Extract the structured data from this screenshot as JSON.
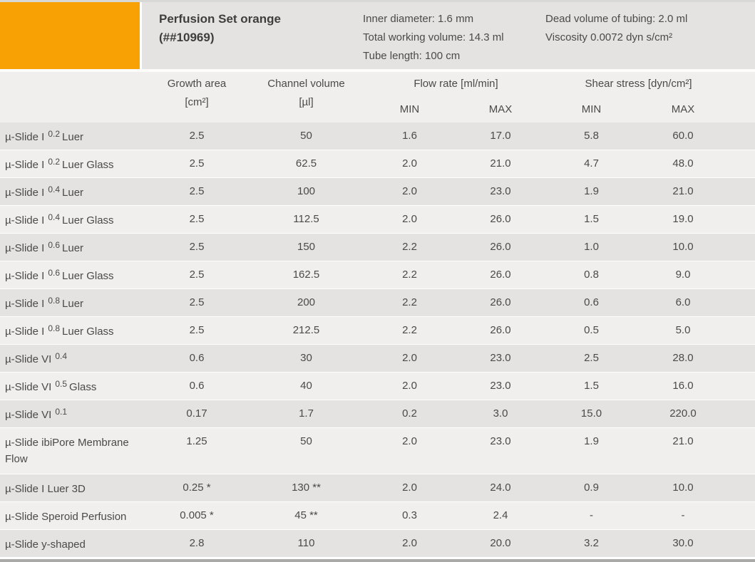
{
  "header": {
    "title_line1": "Perfusion Set orange",
    "title_line2": "(##10969)",
    "specs_col1": [
      "Inner diameter: 1.6 mm",
      "Total working volume: 14.3 ml",
      "Tube length: 100 cm"
    ],
    "specs_col2": [
      "Dead volume of tubing: 2.0 ml",
      "Viscosity 0.0072 dyn s/cm²"
    ]
  },
  "table": {
    "columns": {
      "growth_area": {
        "label": "Growth area",
        "unit": "[cm²]"
      },
      "channel_volume": {
        "label": "Channel volume",
        "unit": "[µl]"
      },
      "flow_rate": {
        "label": "Flow rate [ml/min]",
        "min": "MIN",
        "max": "MAX"
      },
      "shear_stress": {
        "label": "Shear stress [dyn/cm²]",
        "min": "MIN",
        "max": "MAX"
      }
    },
    "rows": [
      {
        "name_pre": "µ-Slide I",
        "name_sup": "0.2",
        "name_post": "Luer",
        "tall": false,
        "values": [
          "2.5",
          "50",
          "1.6",
          "17.0",
          "5.8",
          "60.0"
        ]
      },
      {
        "name_pre": "µ-Slide I",
        "name_sup": "0.2",
        "name_post": "Luer Glass",
        "tall": false,
        "values": [
          "2.5",
          "62.5",
          "2.0",
          "21.0",
          "4.7",
          "48.0"
        ]
      },
      {
        "name_pre": "µ-Slide I",
        "name_sup": "0.4",
        "name_post": "Luer",
        "tall": false,
        "values": [
          "2.5",
          "100",
          "2.0",
          "23.0",
          "1.9",
          "21.0"
        ]
      },
      {
        "name_pre": "µ-Slide I",
        "name_sup": "0.4",
        "name_post": "Luer Glass",
        "tall": false,
        "values": [
          "2.5",
          "112.5",
          "2.0",
          "26.0",
          "1.5",
          "19.0"
        ]
      },
      {
        "name_pre": "µ-Slide I",
        "name_sup": "0.6",
        "name_post": "Luer",
        "tall": false,
        "values": [
          "2.5",
          "150",
          "2.2",
          "26.0",
          "1.0",
          "10.0"
        ]
      },
      {
        "name_pre": "µ-Slide I",
        "name_sup": "0.6",
        "name_post": "Luer Glass",
        "tall": false,
        "values": [
          "2.5",
          "162.5",
          "2.2",
          "26.0",
          "0.8",
          "9.0"
        ]
      },
      {
        "name_pre": "µ-Slide I",
        "name_sup": "0.8",
        "name_post": "Luer",
        "tall": false,
        "values": [
          "2.5",
          "200",
          "2.2",
          "26.0",
          "0.6",
          "6.0"
        ]
      },
      {
        "name_pre": "µ-Slide I",
        "name_sup": "0.8",
        "name_post": "Luer Glass",
        "tall": false,
        "values": [
          "2.5",
          "212.5",
          "2.2",
          "26.0",
          "0.5",
          "5.0"
        ]
      },
      {
        "name_pre": "µ-Slide VI",
        "name_sup": "0.4",
        "name_post": "",
        "tall": false,
        "values": [
          "0.6",
          "30",
          "2.0",
          "23.0",
          "2.5",
          "28.0"
        ]
      },
      {
        "name_pre": "µ-Slide VI",
        "name_sup": "0.5",
        "name_post": "Glass",
        "tall": false,
        "values": [
          "0.6",
          "40",
          "2.0",
          "23.0",
          "1.5",
          "16.0"
        ]
      },
      {
        "name_pre": "µ-Slide VI",
        "name_sup": "0.1",
        "name_post": "",
        "tall": false,
        "values": [
          "0.17",
          "1.7",
          "0.2",
          "3.0",
          "15.0",
          "220.0"
        ]
      },
      {
        "name_pre": "µ-Slide ibiPore Membrane Flow",
        "name_sup": "",
        "name_post": "",
        "tall": true,
        "values": [
          "1.25",
          "50",
          "2.0",
          "23.0",
          "1.9",
          "21.0"
        ]
      },
      {
        "name_pre": "µ-Slide I Luer 3D",
        "name_sup": "",
        "name_post": "",
        "tall": false,
        "values": [
          "0.25 *",
          "130 **",
          "2.0",
          "24.0",
          "0.9",
          "10.0"
        ]
      },
      {
        "name_pre": "µ-Slide Speroid Perfusion",
        "name_sup": "",
        "name_post": "",
        "tall": false,
        "values": [
          "0.005 *",
          "45 **",
          "0.3",
          "2.4",
          "-",
          "-"
        ]
      },
      {
        "name_pre": "µ-Slide y-shaped",
        "name_sup": "",
        "name_post": "",
        "tall": false,
        "values": [
          "2.8",
          "110",
          "2.0",
          "20.0",
          "3.2",
          "30.0"
        ]
      }
    ]
  },
  "colors": {
    "accent_orange": "#f8a104",
    "band_gray": "#e4e3e1",
    "row_dark": "#e4e3e1",
    "row_light": "#f0efed",
    "text": "#4a4a48"
  }
}
